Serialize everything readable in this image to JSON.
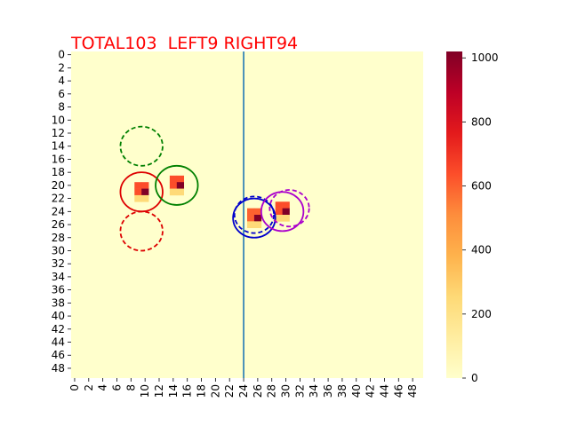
{
  "chart_data": {
    "type": "heatmap",
    "title": "TOTAL103  LEFT9 RIGHT94",
    "title_color": "#ff0000",
    "grid_size": [
      50,
      50
    ],
    "xlim": [
      0,
      50
    ],
    "ylim": [
      0,
      50
    ],
    "x_tick_labels": [
      "0",
      "2",
      "4",
      "6",
      "8",
      "10",
      "12",
      "14",
      "16",
      "18",
      "20",
      "22",
      "24",
      "26",
      "28",
      "30",
      "32",
      "34",
      "36",
      "38",
      "40",
      "42",
      "44",
      "46",
      "48"
    ],
    "y_tick_labels": [
      "0",
      "2",
      "4",
      "6",
      "8",
      "10",
      "12",
      "14",
      "16",
      "18",
      "20",
      "22",
      "24",
      "26",
      "28",
      "30",
      "32",
      "34",
      "36",
      "38",
      "40",
      "42",
      "44",
      "46",
      "48"
    ],
    "colorbar": {
      "min": 0,
      "max": 1020,
      "tick_labels": [
        "0",
        "200",
        "400",
        "600",
        "800",
        "1000"
      ],
      "tick_values": [
        0,
        200,
        400,
        600,
        800,
        1000
      ],
      "colormap": "YlOrRd"
    },
    "cells": [
      {
        "x": 9,
        "y": 20,
        "value": 640
      },
      {
        "x": 10,
        "y": 20,
        "value": 640
      },
      {
        "x": 9,
        "y": 21,
        "value": 640
      },
      {
        "x": 10,
        "y": 21,
        "value": 1020
      },
      {
        "x": 9,
        "y": 22,
        "value": 250
      },
      {
        "x": 10,
        "y": 22,
        "value": 250
      },
      {
        "x": 14,
        "y": 19,
        "value": 640
      },
      {
        "x": 15,
        "y": 19,
        "value": 640
      },
      {
        "x": 14,
        "y": 20,
        "value": 640
      },
      {
        "x": 15,
        "y": 20,
        "value": 1020
      },
      {
        "x": 14,
        "y": 21,
        "value": 250
      },
      {
        "x": 15,
        "y": 21,
        "value": 250
      },
      {
        "x": 25,
        "y": 24,
        "value": 600
      },
      {
        "x": 26,
        "y": 24,
        "value": 600
      },
      {
        "x": 25,
        "y": 25,
        "value": 600
      },
      {
        "x": 26,
        "y": 25,
        "value": 1020
      },
      {
        "x": 25,
        "y": 26,
        "value": 250
      },
      {
        "x": 26,
        "y": 26,
        "value": 250
      },
      {
        "x": 29,
        "y": 23,
        "value": 640
      },
      {
        "x": 30,
        "y": 23,
        "value": 640
      },
      {
        "x": 29,
        "y": 24,
        "value": 640
      },
      {
        "x": 30,
        "y": 24,
        "value": 1020
      },
      {
        "x": 29,
        "y": 25,
        "value": 250
      },
      {
        "x": 30,
        "y": 25,
        "value": 250
      }
    ],
    "vertical_line": {
      "x": 24.5,
      "color": "#1f77b4"
    },
    "circles": [
      {
        "cx": 10,
        "cy": 14.5,
        "r": 3,
        "color": "#008000",
        "style": "dashed"
      },
      {
        "cx": 10,
        "cy": 21.5,
        "r": 3,
        "color": "#dd0000",
        "style": "solid"
      },
      {
        "cx": 10,
        "cy": 27.5,
        "r": 3,
        "color": "#dd0000",
        "style": "dashed"
      },
      {
        "cx": 15,
        "cy": 20.5,
        "r": 3,
        "color": "#008000",
        "style": "solid"
      },
      {
        "cx": 26,
        "cy": 25,
        "r": 2.8,
        "color": "#0000cc",
        "style": "dashed"
      },
      {
        "cx": 26,
        "cy": 25.5,
        "r": 3,
        "color": "#0000cc",
        "style": "solid"
      },
      {
        "cx": 31,
        "cy": 24,
        "r": 2.8,
        "color": "#aa00cc",
        "style": "dashed"
      },
      {
        "cx": 30,
        "cy": 24.5,
        "r": 3,
        "color": "#aa00cc",
        "style": "solid"
      }
    ]
  }
}
